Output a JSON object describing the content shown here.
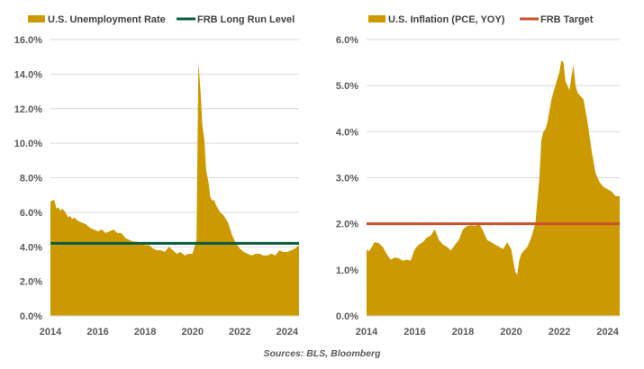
{
  "colors": {
    "area": "#CC9A00",
    "long_run_line": "#0B5C45",
    "target_line": "#C8502A",
    "grid": "#D9D9D9",
    "tick_text": "#595959"
  },
  "source_note": "Sources: BLS, Bloomberg",
  "chart_data": [
    {
      "type": "area",
      "title": "",
      "legend": [
        {
          "label": "U.S. Unemployment Rate",
          "kind": "area"
        },
        {
          "label": "FRB Long Run Level",
          "kind": "line"
        }
      ],
      "legend_position": "top",
      "xlabel": "",
      "ylabel": "",
      "x_range": [
        2014.0,
        2024.5
      ],
      "ylim": [
        0,
        16
      ],
      "y_ticks": [
        "0.0%",
        "2.0%",
        "4.0%",
        "6.0%",
        "8.0%",
        "10.0%",
        "12.0%",
        "14.0%",
        "16.0%"
      ],
      "y_tick_values": [
        0,
        2,
        4,
        6,
        8,
        10,
        12,
        14,
        16
      ],
      "x_ticks": [
        "2014",
        "2016",
        "2018",
        "2020",
        "2022",
        "2024"
      ],
      "x_tick_values": [
        2014,
        2016,
        2018,
        2020,
        2022,
        2024
      ],
      "grid": true,
      "series": [
        {
          "name": "U.S. Unemployment Rate",
          "x": [
            2014.0,
            2014.08,
            2014.17,
            2014.25,
            2014.33,
            2014.42,
            2014.5,
            2014.58,
            2014.67,
            2014.75,
            2014.83,
            2014.92,
            2015.0,
            2015.17,
            2015.33,
            2015.5,
            2015.67,
            2015.83,
            2016.0,
            2016.17,
            2016.33,
            2016.5,
            2016.67,
            2016.83,
            2017.0,
            2017.17,
            2017.33,
            2017.5,
            2017.67,
            2017.83,
            2018.0,
            2018.17,
            2018.33,
            2018.5,
            2018.67,
            2018.83,
            2019.0,
            2019.17,
            2019.33,
            2019.5,
            2019.67,
            2019.83,
            2020.0,
            2020.17,
            2020.25,
            2020.33,
            2020.42,
            2020.5,
            2020.58,
            2020.67,
            2020.75,
            2020.83,
            2020.92,
            2021.0,
            2021.17,
            2021.33,
            2021.5,
            2021.67,
            2021.83,
            2022.0,
            2022.17,
            2022.33,
            2022.5,
            2022.67,
            2022.83,
            2023.0,
            2023.17,
            2023.33,
            2023.5,
            2023.67,
            2023.83,
            2024.0,
            2024.17,
            2024.33,
            2024.5
          ],
          "values": [
            6.6,
            6.7,
            6.7,
            6.2,
            6.3,
            6.1,
            6.2,
            6.1,
            5.9,
            5.7,
            5.8,
            5.6,
            5.7,
            5.5,
            5.4,
            5.3,
            5.1,
            5.0,
            4.9,
            5.0,
            4.8,
            4.9,
            5.0,
            4.8,
            4.8,
            4.5,
            4.4,
            4.3,
            4.3,
            4.2,
            4.1,
            4.1,
            3.9,
            3.8,
            3.8,
            3.7,
            4.0,
            3.8,
            3.6,
            3.7,
            3.5,
            3.6,
            3.6,
            4.4,
            14.7,
            13.2,
            11.0,
            10.2,
            8.4,
            7.8,
            6.9,
            6.7,
            6.7,
            6.4,
            6.0,
            5.8,
            5.4,
            4.7,
            4.2,
            3.9,
            3.7,
            3.6,
            3.5,
            3.6,
            3.6,
            3.5,
            3.5,
            3.6,
            3.5,
            3.8,
            3.7,
            3.7,
            3.8,
            3.9,
            4.1
          ]
        },
        {
          "name": "FRB Long Run Level",
          "x": [
            2014.0,
            2024.5
          ],
          "values": [
            4.2,
            4.2
          ]
        }
      ]
    },
    {
      "type": "area",
      "title": "",
      "legend": [
        {
          "label": "U.S. Inflation (PCE, YOY)",
          "kind": "area"
        },
        {
          "label": "FRB Target",
          "kind": "line"
        }
      ],
      "legend_position": "top",
      "xlabel": "",
      "ylabel": "",
      "x_range": [
        2014.0,
        2024.5
      ],
      "ylim": [
        0,
        6
      ],
      "y_ticks": [
        "0.0%",
        "1.0%",
        "2.0%",
        "3.0%",
        "4.0%",
        "5.0%",
        "6.0%"
      ],
      "y_tick_values": [
        0,
        1,
        2,
        3,
        4,
        5,
        6
      ],
      "x_ticks": [
        "2014",
        "2016",
        "2018",
        "2020",
        "2022",
        "2024"
      ],
      "x_tick_values": [
        2014,
        2016,
        2018,
        2020,
        2022,
        2024
      ],
      "grid": true,
      "series": [
        {
          "name": "U.S. Inflation (PCE, YOY)",
          "x": [
            2014.0,
            2014.08,
            2014.17,
            2014.33,
            2014.5,
            2014.67,
            2014.83,
            2015.0,
            2015.17,
            2015.33,
            2015.5,
            2015.67,
            2015.83,
            2016.0,
            2016.17,
            2016.33,
            2016.5,
            2016.67,
            2016.83,
            2017.0,
            2017.17,
            2017.33,
            2017.5,
            2017.67,
            2017.83,
            2018.0,
            2018.17,
            2018.33,
            2018.5,
            2018.67,
            2018.83,
            2019.0,
            2019.17,
            2019.33,
            2019.5,
            2019.67,
            2019.83,
            2020.0,
            2020.17,
            2020.25,
            2020.33,
            2020.42,
            2020.5,
            2020.67,
            2020.83,
            2021.0,
            2021.17,
            2021.25,
            2021.33,
            2021.42,
            2021.5,
            2021.67,
            2021.83,
            2022.0,
            2022.08,
            2022.17,
            2022.25,
            2022.33,
            2022.42,
            2022.5,
            2022.58,
            2022.67,
            2022.75,
            2022.83,
            2023.0,
            2023.17,
            2023.33,
            2023.5,
            2023.67,
            2023.83,
            2024.0,
            2024.17,
            2024.33,
            2024.5
          ],
          "values": [
            1.45,
            1.4,
            1.45,
            1.6,
            1.58,
            1.5,
            1.35,
            1.22,
            1.27,
            1.25,
            1.2,
            1.22,
            1.2,
            1.45,
            1.55,
            1.6,
            1.7,
            1.75,
            1.88,
            1.65,
            1.55,
            1.5,
            1.42,
            1.55,
            1.65,
            1.88,
            1.95,
            1.97,
            1.95,
            2.0,
            1.85,
            1.65,
            1.6,
            1.55,
            1.5,
            1.45,
            1.6,
            1.45,
            0.95,
            0.9,
            1.2,
            1.35,
            1.4,
            1.5,
            1.7,
            2.0,
            3.0,
            3.8,
            4.0,
            4.05,
            4.2,
            4.7,
            5.0,
            5.3,
            5.55,
            5.5,
            5.1,
            5.0,
            4.9,
            5.2,
            5.45,
            5.0,
            4.85,
            4.8,
            4.7,
            4.2,
            3.6,
            3.1,
            2.9,
            2.8,
            2.75,
            2.7,
            2.6,
            2.6
          ]
        },
        {
          "name": "FRB Target",
          "x": [
            2014.0,
            2024.5
          ],
          "values": [
            2.0,
            2.0
          ]
        }
      ]
    }
  ]
}
